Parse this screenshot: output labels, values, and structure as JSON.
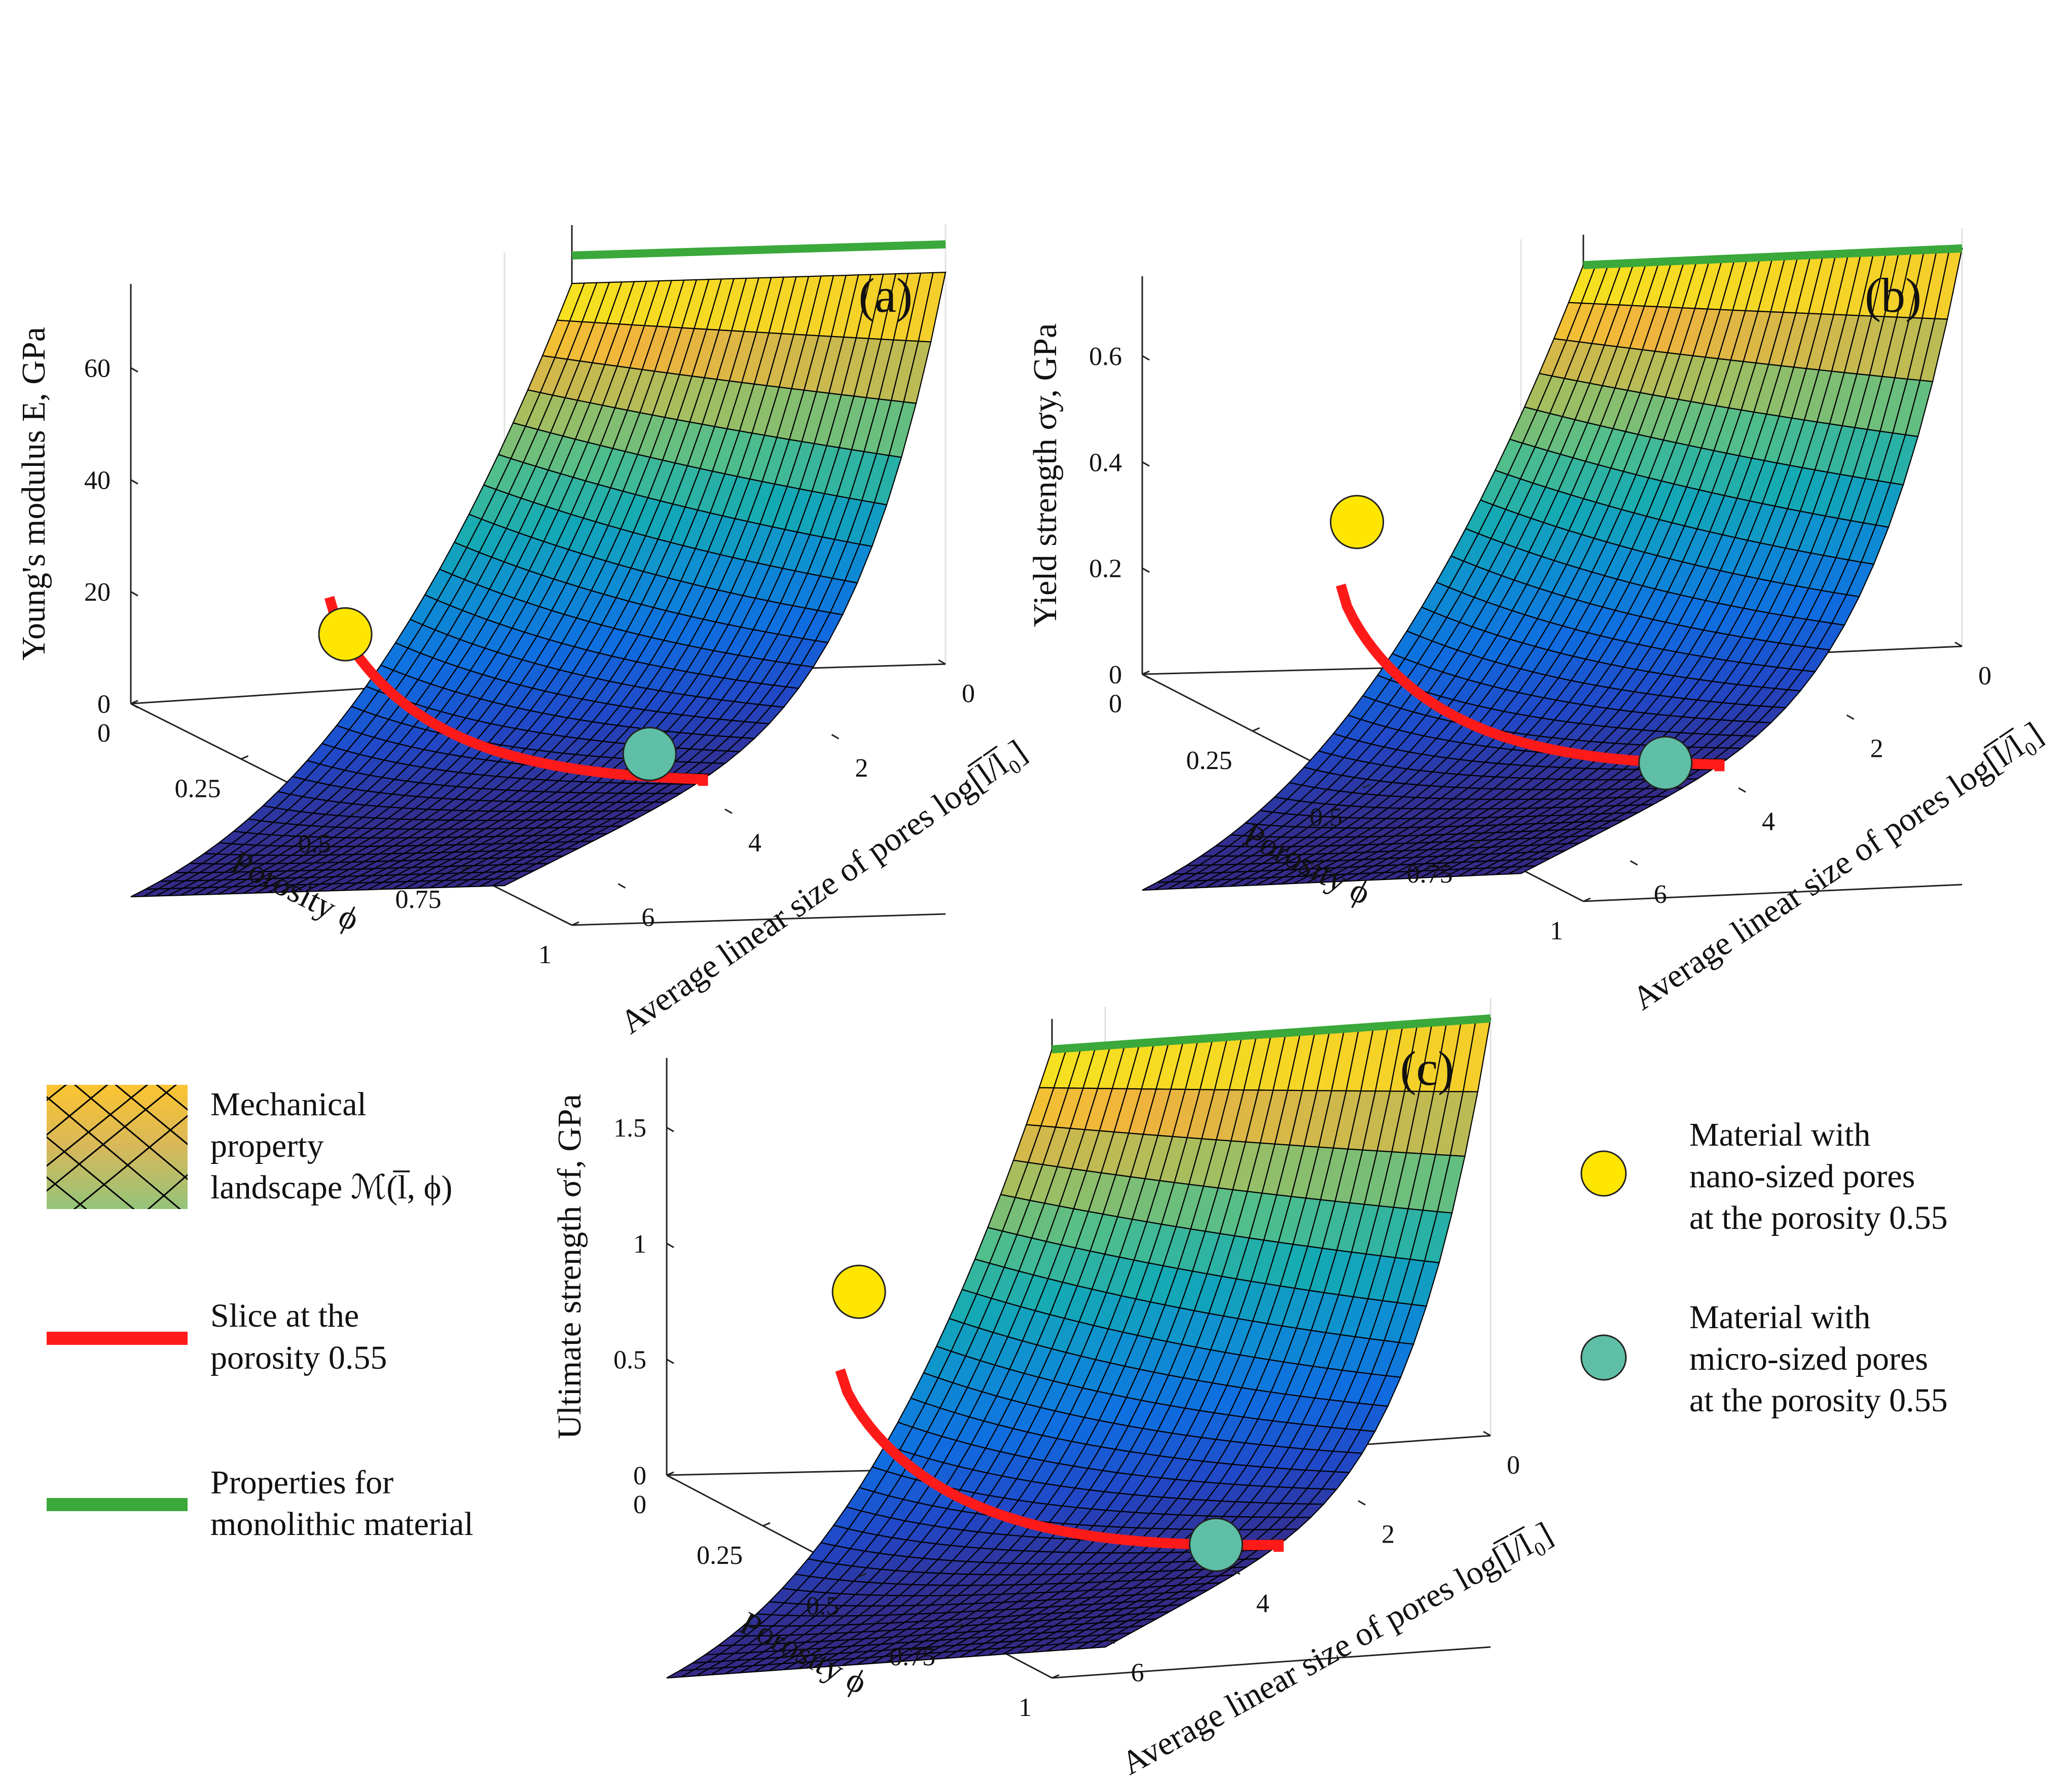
{
  "chart_data": [
    {
      "type": "surface",
      "panel_label": "(a)",
      "title": "",
      "zlabel": "Young's modulus E, GPa",
      "xlabel": "Porosity ϕ",
      "ylabel": "Average linear size of pores log[l̅/l̅₀]",
      "x_ticks": [
        "0",
        "0.25",
        "0.5",
        "0.75",
        "1"
      ],
      "y_ticks": [
        "0",
        "2",
        "4",
        "6"
      ],
      "z_ticks": [
        "0",
        "20",
        "40",
        "60"
      ],
      "xlim": [
        0,
        1
      ],
      "ylim": [
        0,
        7
      ],
      "zlim": [
        0,
        75
      ],
      "monolithic_value": 75,
      "surface_peak": 70,
      "slice_porosity": 0.55,
      "markers": [
        {
          "name": "nano-sized pores",
          "x": 0.55,
          "y": 0.3,
          "value": 29
        },
        {
          "name": "micro-sized pores",
          "x": 0.55,
          "y": 6.0,
          "value": 6
        }
      ]
    },
    {
      "type": "surface",
      "panel_label": "(b)",
      "title": "",
      "zlabel": "Yield strength σy, GPa",
      "xlabel": "Porosity ϕ",
      "ylabel": "Average linear size of pores log[l̅/l̅₀]",
      "x_ticks": [
        "0",
        "0.25",
        "0.5",
        "0.75",
        "1"
      ],
      "y_ticks": [
        "0",
        "2",
        "4",
        "6"
      ],
      "z_ticks": [
        "0",
        "0.2",
        "0.4",
        "0.6"
      ],
      "xlim": [
        0,
        1
      ],
      "ylim": [
        0,
        7
      ],
      "zlim": [
        0,
        0.75
      ],
      "monolithic_value": 0.75,
      "surface_peak": 0.75,
      "slice_porosity": 0.55,
      "markers": [
        {
          "name": "nano-sized pores",
          "x": 0.55,
          "y": 0.3,
          "value": 0.5
        },
        {
          "name": "micro-sized pores",
          "x": 0.55,
          "y": 6.0,
          "value": 0.02
        }
      ]
    },
    {
      "type": "surface",
      "panel_label": "(c)",
      "title": "",
      "zlabel": "Ultimate strength σf, GPa",
      "xlabel": "Porosity ϕ",
      "ylabel": "Average linear size of pores log[l̅/l̅₀]",
      "x_ticks": [
        "0",
        "0.25",
        "0.5",
        "0.75",
        "1"
      ],
      "y_ticks": [
        "0",
        "2",
        "4",
        "6"
      ],
      "z_ticks": [
        "0",
        "0.5",
        "1",
        "1.5"
      ],
      "xlim": [
        0,
        1
      ],
      "ylim": [
        0,
        7
      ],
      "zlim": [
        0,
        1.8
      ],
      "monolithic_value": 1.8,
      "surface_peak": 1.8,
      "slice_porosity": 0.55,
      "markers": [
        {
          "name": "nano-sized pores",
          "x": 0.55,
          "y": 0.3,
          "value": 1.25
        },
        {
          "name": "micro-sized pores",
          "x": 0.55,
          "y": 6.0,
          "value": 0.05
        }
      ]
    }
  ],
  "legend": {
    "landscape": "Mechanical property landscape ℳ(l̅, ϕ)",
    "landscape_lines": [
      "Mechanical",
      "property",
      "landscape ℳ(l̅, ϕ)"
    ],
    "slice": "Slice at the porosity 0.55",
    "slice_lines": [
      "Slice at the",
      "porosity 0.55"
    ],
    "monolithic": "Properties for monolithic material",
    "monolithic_lines": [
      "Properties for",
      "monolithic material"
    ],
    "nano": "Material with nano-sized pores at the porosity 0.55",
    "nano_lines": [
      "Material with",
      "nano-sized pores",
      "at the porosity 0.55"
    ],
    "micro": "Material with micro-sized pores at the porosity 0.55",
    "micro_lines": [
      "Material with",
      "micro-sized pores",
      "at the porosity 0.55"
    ]
  },
  "colors": {
    "slice": "#ff1a1a",
    "monolithic": "#3aa83a",
    "nano_marker": "#ffe600",
    "micro_marker": "#5fbfa6",
    "axis": "#222222",
    "grid": "#e2e2e2"
  }
}
